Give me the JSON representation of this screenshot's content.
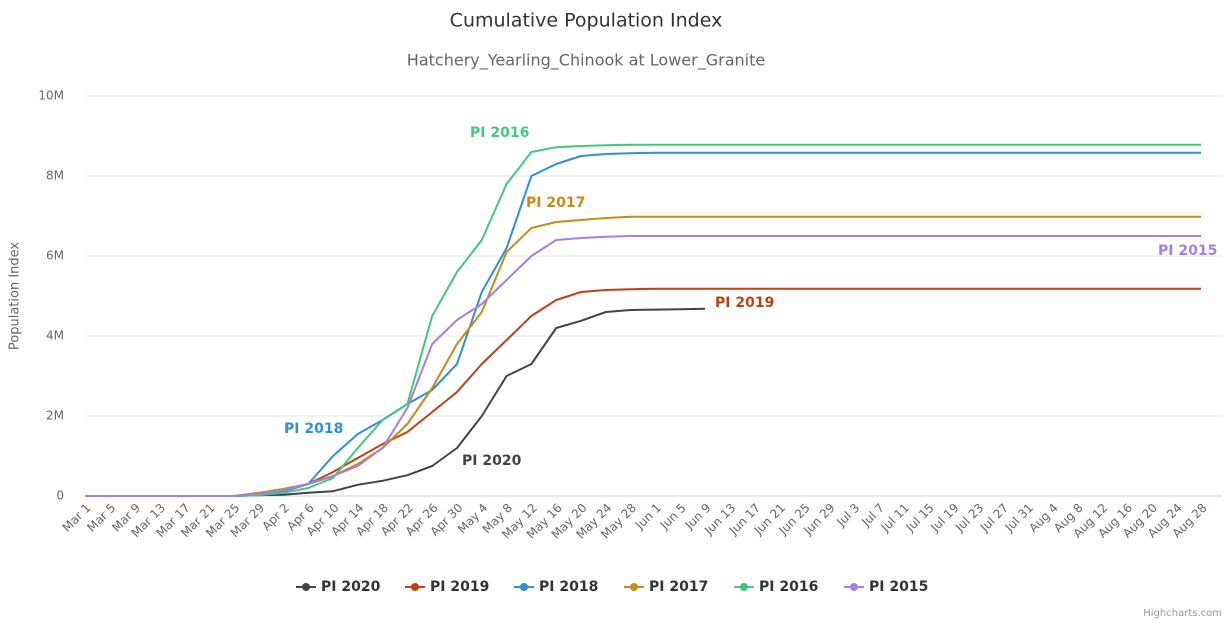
{
  "chart_data": {
    "type": "line",
    "title": "Cumulative Population Index",
    "subtitle": "Hatchery_Yearling_Chinook at Lower_Granite",
    "y_label": "Population Index",
    "credits": "Highcharts.com",
    "categories": [
      "Mar 1",
      "Mar 5",
      "Mar 9",
      "Mar 13",
      "Mar 17",
      "Mar 21",
      "Mar 25",
      "Mar 29",
      "Apr 2",
      "Apr 6",
      "Apr 10",
      "Apr 14",
      "Apr 18",
      "Apr 22",
      "Apr 26",
      "Apr 30",
      "May 4",
      "May 8",
      "May 12",
      "May 16",
      "May 20",
      "May 24",
      "May 28",
      "Jun 1",
      "Jun 5",
      "Jun 9",
      "Jun 13",
      "Jun 17",
      "Jun 21",
      "Jun 25",
      "Jun 29",
      "Jul 3",
      "Jul 7",
      "Jul 11",
      "Jul 15",
      "Jul 19",
      "Jul 23",
      "Jul 27",
      "Jul 31",
      "Aug 4",
      "Aug 8",
      "Aug 12",
      "Aug 16",
      "Aug 20",
      "Aug 24",
      "Aug 28"
    ],
    "ylim": [
      0,
      10000000
    ],
    "yticks": [
      0,
      {
        "value": 2000000,
        "label": "2M"
      },
      {
        "value": 4000000,
        "label": "4M"
      },
      {
        "value": 6000000,
        "label": "6M"
      },
      {
        "value": 8000000,
        "label": "8M"
      },
      {
        "value": 10000000,
        "label": "10M"
      }
    ],
    "grid": true,
    "legend": "bottom",
    "series": [
      {
        "name": "PI 2020",
        "color": "#434348",
        "values": [
          0,
          0,
          0,
          0,
          0,
          0,
          0,
          20000,
          30000,
          80000,
          120000,
          280000,
          380000,
          520000,
          750000,
          1200000,
          2000000,
          3000000,
          3300000,
          4200000,
          4380000,
          4600000,
          4650000,
          4660000,
          4670000,
          4680000,
          null,
          null,
          null,
          null,
          null,
          null,
          null,
          null,
          null,
          null,
          null,
          null,
          null,
          null,
          null,
          null,
          null,
          null,
          null,
          null
        ]
      },
      {
        "name": "PI 2019",
        "color": "#c0410f",
        "values": [
          0,
          0,
          0,
          0,
          0,
          0,
          0,
          50000,
          120000,
          300000,
          600000,
          950000,
          1300000,
          1600000,
          2100000,
          2600000,
          3300000,
          3900000,
          4500000,
          4900000,
          5100000,
          5150000,
          5170000,
          5180000,
          5180000,
          5180000,
          5180000,
          5180000,
          5180000,
          5180000,
          5180000,
          5180000,
          5180000,
          5180000,
          5180000,
          5180000,
          5180000,
          5180000,
          5180000,
          5180000,
          5180000,
          5180000,
          5180000,
          5180000,
          5180000,
          5180000
        ]
      },
      {
        "name": "PI 2018",
        "color": "#2e8fdd",
        "values": [
          0,
          0,
          0,
          0,
          0,
          0,
          0,
          50000,
          120000,
          300000,
          1000000,
          1550000,
          1900000,
          2300000,
          2650000,
          3300000,
          5100000,
          6200000,
          8000000,
          8300000,
          8500000,
          8550000,
          8570000,
          8580000,
          8580000,
          8580000,
          8580000,
          8580000,
          8580000,
          8580000,
          8580000,
          8580000,
          8580000,
          8580000,
          8580000,
          8580000,
          8580000,
          8580000,
          8580000,
          8580000,
          8580000,
          8580000,
          8580000,
          8580000,
          8580000,
          8580000
        ]
      },
      {
        "name": "PI 2017",
        "color": "#c98b13",
        "values": [
          0,
          0,
          0,
          0,
          0,
          0,
          0,
          80000,
          180000,
          300000,
          500000,
          800000,
          1200000,
          1800000,
          2700000,
          3800000,
          4600000,
          6100000,
          6700000,
          6850000,
          6900000,
          6950000,
          6980000,
          6980000,
          6980000,
          6980000,
          6980000,
          6980000,
          6980000,
          6980000,
          6980000,
          6980000,
          6980000,
          6980000,
          6980000,
          6980000,
          6980000,
          6980000,
          6980000,
          6980000,
          6980000,
          6980000,
          6980000,
          6980000,
          6980000,
          6980000
        ]
      },
      {
        "name": "PI 2016",
        "color": "#3fc97b",
        "values": [
          0,
          0,
          0,
          0,
          0,
          0,
          0,
          20000,
          80000,
          200000,
          450000,
          1200000,
          1900000,
          2300000,
          4500000,
          5600000,
          6400000,
          7800000,
          8600000,
          8720000,
          8750000,
          8770000,
          8780000,
          8780000,
          8780000,
          8780000,
          8780000,
          8780000,
          8780000,
          8780000,
          8780000,
          8780000,
          8780000,
          8780000,
          8780000,
          8780000,
          8780000,
          8780000,
          8780000,
          8780000,
          8780000,
          8780000,
          8780000,
          8780000,
          8780000,
          8780000
        ]
      },
      {
        "name": "PI 2015",
        "color": "#a67ee6",
        "values": [
          0,
          0,
          0,
          0,
          0,
          0,
          0,
          50000,
          150000,
          300000,
          500000,
          750000,
          1200000,
          2200000,
          3800000,
          4400000,
          4800000,
          5400000,
          6000000,
          6400000,
          6450000,
          6480000,
          6500000,
          6500000,
          6500000,
          6500000,
          6500000,
          6500000,
          6500000,
          6500000,
          6500000,
          6500000,
          6500000,
          6500000,
          6500000,
          6500000,
          6500000,
          6500000,
          6500000,
          6500000,
          6500000,
          6500000,
          6500000,
          6500000,
          6500000,
          6500000
        ]
      }
    ]
  }
}
